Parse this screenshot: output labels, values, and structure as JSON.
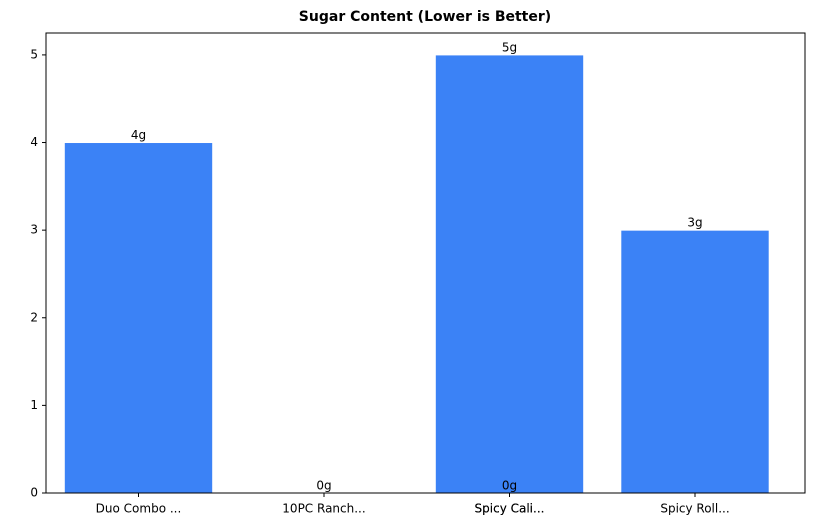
{
  "chart_data": {
    "type": "bar",
    "title": "Sugar Content (Lower is Better)",
    "categories": [
      "Duo Combo ...",
      "10PC Ranch...",
      "Spicy Cali...",
      "Spicy Cali...",
      "Spicy Roll..."
    ],
    "values": [
      4,
      0,
      0,
      5,
      3
    ],
    "value_labels": [
      "4g",
      "0g",
      "0g",
      "5g",
      "3g"
    ],
    "color": "#3b82f6",
    "ylim": [
      0,
      5.25
    ],
    "yticks": [
      0,
      1,
      2,
      3,
      4,
      5
    ],
    "grid": false
  }
}
